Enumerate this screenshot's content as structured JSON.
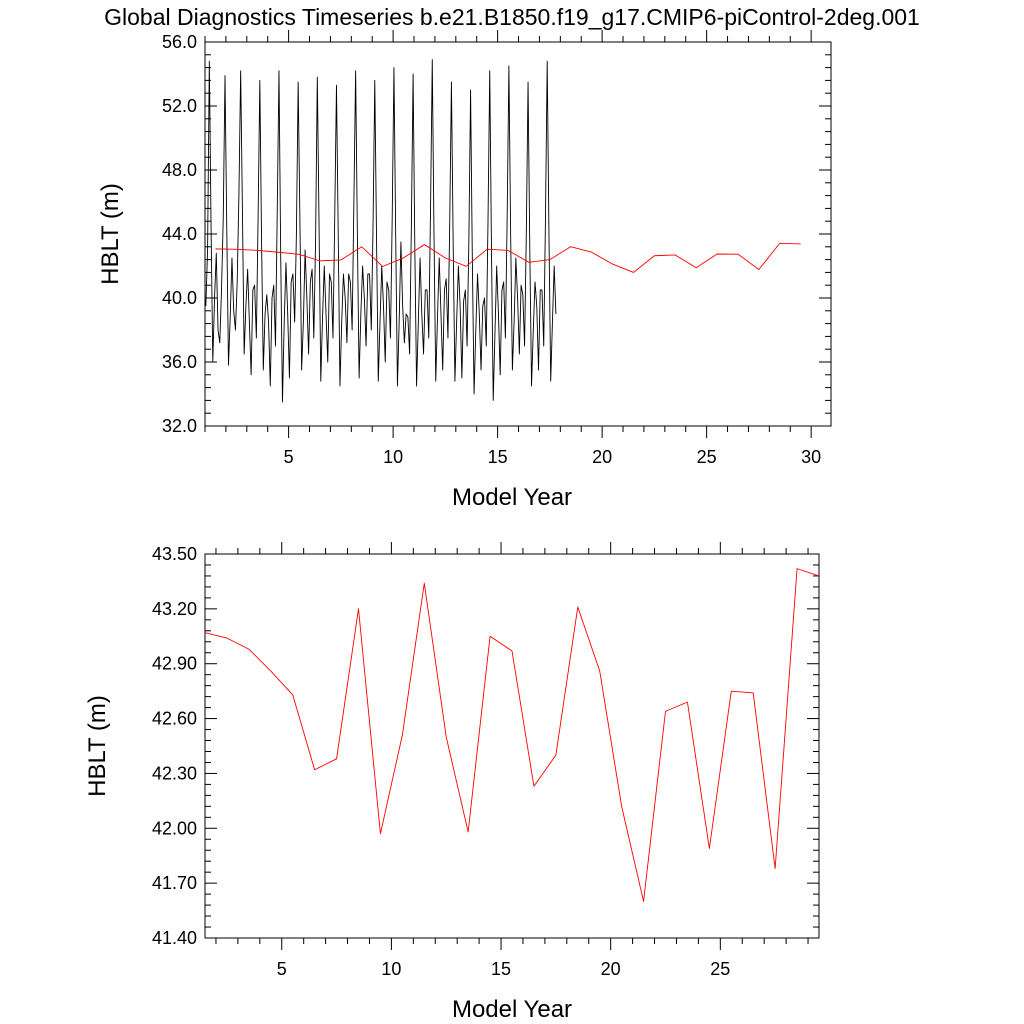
{
  "chart_data": [
    {
      "type": "line",
      "title": "Global Diagnostics Timeseries b.e21.B1850.f19_g17.CMIP6-piControl-2deg.001",
      "xlabel": "Model Year",
      "ylabel": "HBLT (m)",
      "xlim": [
        1.0,
        30.95
      ],
      "ylim": [
        32.0,
        56.0
      ],
      "xticks": [
        5,
        10,
        15,
        20,
        25,
        30
      ],
      "xtick_labels": [
        "5",
        "10",
        "15",
        "20",
        "25",
        "30"
      ],
      "yticks": [
        32.0,
        36.0,
        40.0,
        44.0,
        48.0,
        52.0,
        56.0
      ],
      "ytick_labels": [
        "32.0",
        "36.0",
        "40.0",
        "44.0",
        "48.0",
        "52.0",
        "56.0"
      ],
      "grid": false,
      "series": [
        {
          "color": "#000000",
          "x_start": 1.04,
          "x_step": 0.08333,
          "values": [
            39.5,
            43.0,
            54.8,
            44.5,
            36.0,
            40.0,
            42.8,
            38.0,
            37.2,
            40.5,
            45.0,
            53.9,
            44.5,
            35.8,
            38.8,
            42.5,
            39.2,
            38.0,
            41.0,
            46.5,
            54.2,
            45.5,
            36.5,
            39.5,
            41.8,
            38.5,
            35.2,
            40.5,
            40.8,
            37.5,
            45.0,
            53.6,
            43.5,
            35.5,
            39.0,
            40.2,
            38.5,
            34.5,
            40.0,
            40.8,
            37.0,
            45.5,
            54.2,
            42.5,
            33.5,
            38.5,
            42.2,
            39.0,
            35.0,
            41.0,
            41.5,
            38.5,
            44.0,
            53.5,
            45.0,
            35.5,
            38.5,
            43.0,
            40.0,
            36.5,
            41.0,
            41.8,
            37.5,
            43.5,
            53.8,
            44.5,
            34.8,
            38.8,
            42.0,
            39.0,
            36.0,
            41.5,
            41.0,
            37.5,
            45.0,
            53.3,
            44.0,
            34.5,
            38.5,
            41.5,
            40.0,
            37.2,
            41.5,
            41.0,
            38.0,
            46.0,
            54.2,
            44.0,
            35.0,
            39.0,
            42.0,
            40.0,
            37.0,
            41.5,
            41.5,
            38.0,
            44.5,
            53.6,
            43.8,
            34.8,
            38.5,
            42.0,
            39.5,
            36.0,
            41.0,
            40.5,
            37.5,
            45.0,
            54.4,
            44.0,
            34.5,
            38.5,
            43.5,
            39.5,
            37.2,
            39.0,
            38.8,
            36.5,
            44.5,
            54.0,
            43.0,
            34.5,
            38.5,
            42.5,
            39.0,
            36.5,
            40.5,
            40.5,
            37.5,
            45.5,
            54.9,
            44.0,
            34.8,
            38.8,
            42.5,
            39.0,
            35.5,
            40.5,
            41.2,
            37.5,
            44.5,
            53.5,
            43.5,
            34.8,
            38.5,
            42.0,
            39.5,
            35.0,
            39.8,
            40.5,
            37.0,
            43.5,
            53.0,
            42.5,
            34.0,
            38.0,
            41.5,
            39.0,
            35.5,
            39.5,
            40.0,
            37.0,
            44.8,
            54.2,
            43.0,
            33.6,
            37.8,
            42.0,
            39.0,
            35.2,
            40.5,
            41.0,
            37.5,
            45.0,
            54.5,
            44.0,
            35.5,
            38.5,
            42.5,
            40.0,
            36.5,
            40.8,
            40.2,
            37.0,
            44.0,
            53.5,
            43.0,
            34.5,
            38.0,
            41.0,
            39.5,
            35.5,
            40.5,
            40.5,
            37.0,
            45.0,
            54.8,
            44.0,
            34.8,
            38.5,
            42.0,
            39.0
          ]
        },
        {
          "color": "#ff0000",
          "x": [
            1.5,
            2.5,
            3.5,
            4.5,
            5.5,
            6.5,
            7.5,
            8.5,
            9.5,
            10.5,
            11.5,
            12.5,
            13.5,
            14.5,
            15.5,
            16.5,
            17.5,
            18.5,
            19.5,
            20.5,
            21.5,
            22.5,
            23.5,
            24.5,
            25.5,
            26.5,
            27.5,
            28.5,
            29.5
          ],
          "values": [
            43.07,
            43.04,
            42.98,
            42.86,
            42.73,
            42.32,
            42.38,
            43.2,
            41.97,
            42.51,
            43.34,
            42.5,
            41.98,
            43.05,
            42.97,
            42.23,
            42.4,
            43.21,
            42.86,
            42.12,
            41.6,
            42.64,
            42.69,
            41.89,
            42.75,
            42.74,
            41.78,
            43.42,
            43.38
          ]
        }
      ]
    },
    {
      "type": "line",
      "title": "",
      "xlabel": "Model Year",
      "ylabel": "HBLT (m)",
      "xlim": [
        1.5,
        29.5
      ],
      "ylim": [
        41.4,
        43.5
      ],
      "xticks": [
        5,
        10,
        15,
        20,
        25
      ],
      "xtick_labels": [
        "5",
        "10",
        "15",
        "20",
        "25"
      ],
      "yticks": [
        41.4,
        41.7,
        42.0,
        42.3,
        42.6,
        42.9,
        43.2,
        43.5
      ],
      "ytick_labels": [
        "41.40",
        "41.70",
        "42.00",
        "42.30",
        "42.60",
        "42.90",
        "43.20",
        "43.50"
      ],
      "grid": false,
      "series": [
        {
          "color": "#ff0000",
          "x": [
            1.5,
            2.5,
            3.5,
            4.5,
            5.5,
            6.5,
            7.5,
            8.5,
            9.5,
            10.5,
            11.5,
            12.5,
            13.5,
            14.5,
            15.5,
            16.5,
            17.5,
            18.5,
            19.5,
            20.5,
            21.5,
            22.5,
            23.5,
            24.5,
            25.5,
            26.5,
            27.5,
            28.5,
            29.5
          ],
          "values": [
            43.07,
            43.04,
            42.98,
            42.86,
            42.73,
            42.32,
            42.38,
            43.2,
            41.97,
            42.51,
            43.34,
            42.5,
            41.98,
            43.05,
            42.97,
            42.23,
            42.4,
            43.21,
            42.86,
            42.12,
            41.6,
            42.64,
            42.69,
            41.89,
            42.75,
            42.74,
            41.78,
            43.42,
            43.38
          ]
        }
      ]
    }
  ]
}
